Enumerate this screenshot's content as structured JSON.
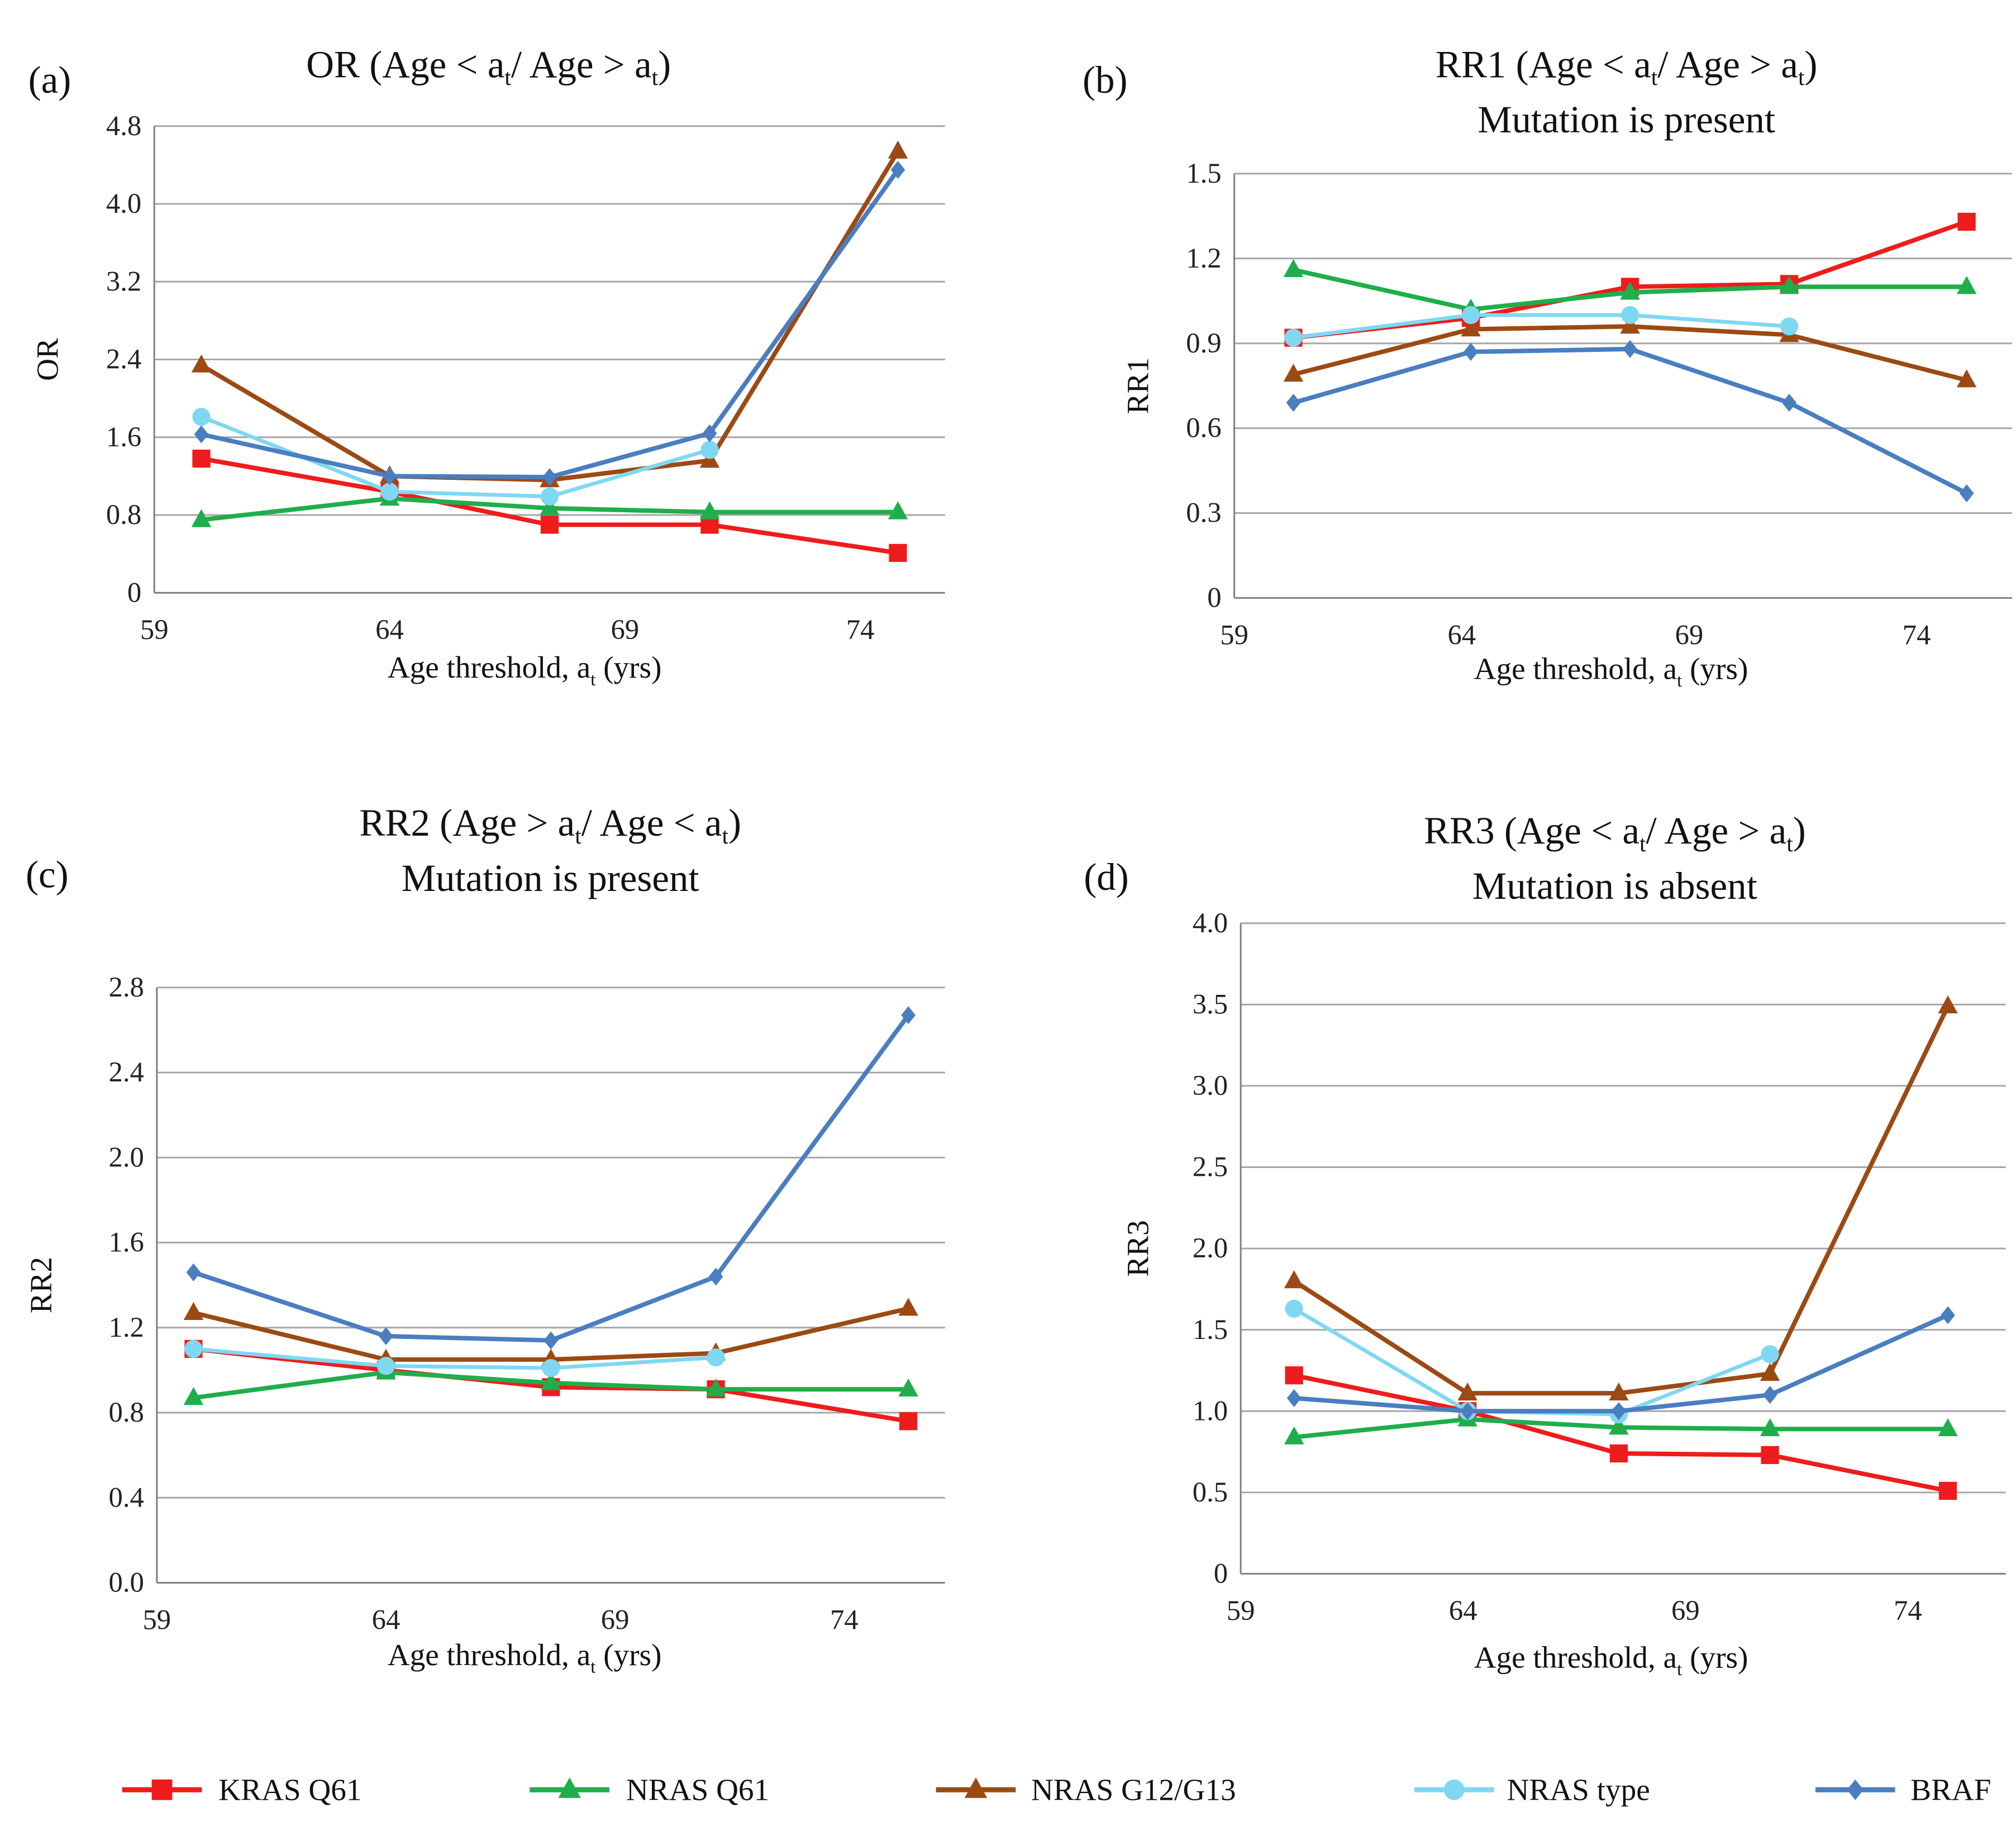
{
  "colors": {
    "KRAS Q61": "#ee1c1c",
    "NRAS Q61": "#1fae4b",
    "NRAS G12/G13": "#9c4a14",
    "NRAS type": "#7fd8f2",
    "BRAF": "#4a7ebf",
    "grid": "#a6a6a6",
    "axis": "#7f7f7f"
  },
  "legend": [
    {
      "name": "KRAS Q61",
      "marker": "square"
    },
    {
      "name": "NRAS Q61",
      "marker": "triangle"
    },
    {
      "name": "NRAS G12/G13",
      "marker": "triangle"
    },
    {
      "name": "NRAS type",
      "marker": "circle"
    },
    {
      "name": "BRAF",
      "marker": "diamond"
    }
  ],
  "chart_data": [
    {
      "type": "line",
      "panel_label": "(a)",
      "title": [
        [
          "OR (Age < a",
          "t",
          "/ Age > a",
          "t",
          ")"
        ]
      ],
      "xlabel": [
        "Age threshold, a",
        "t",
        " (yrs)"
      ],
      "ylabel": "OR",
      "xticks": [
        59,
        64,
        69,
        74
      ],
      "yticks": [
        "0",
        "0.8",
        "1.6",
        "2.4",
        "3.2",
        "4.0",
        "4.8"
      ],
      "ylim": [
        0,
        4.8
      ],
      "xlim": [
        59,
        75.8
      ],
      "x": [
        60,
        64,
        67.4,
        70.8,
        74.8
      ],
      "series": [
        {
          "name": "KRAS Q61",
          "values": [
            1.38,
            1.04,
            0.7,
            0.7,
            0.41
          ]
        },
        {
          "name": "NRAS Q61",
          "values": [
            0.75,
            0.97,
            0.87,
            0.83,
            0.83
          ]
        },
        {
          "name": "NRAS G12/G13",
          "values": [
            2.34,
            1.2,
            1.16,
            1.36,
            4.54
          ]
        },
        {
          "name": "NRAS type",
          "values": [
            1.81,
            1.04,
            0.99,
            1.47,
            null
          ]
        },
        {
          "name": "BRAF",
          "values": [
            1.63,
            1.2,
            1.19,
            1.64,
            4.35
          ]
        }
      ]
    },
    {
      "type": "line",
      "panel_label": "(b)",
      "title": [
        [
          "RR1 (Age < a",
          "t",
          "/ Age > a",
          "t",
          ")"
        ],
        [
          "Mutation is present"
        ]
      ],
      "xlabel": [
        "Age threshold, a",
        "t",
        " (yrs)"
      ],
      "ylabel": "RR1",
      "xticks": [
        59,
        64,
        69,
        74
      ],
      "yticks": [
        "0",
        "0.3",
        "0.6",
        "0.9",
        "1.2",
        "1.5"
      ],
      "ylim": [
        0,
        1.5
      ],
      "xlim": [
        59,
        76.1
      ],
      "x": [
        60.3,
        64.2,
        67.7,
        71.2,
        75.1
      ],
      "series": [
        {
          "name": "KRAS Q61",
          "values": [
            0.92,
            0.99,
            1.1,
            1.11,
            1.33
          ]
        },
        {
          "name": "NRAS Q61",
          "values": [
            1.16,
            1.02,
            1.08,
            1.1,
            1.1
          ]
        },
        {
          "name": "NRAS G12/G13",
          "values": [
            0.79,
            0.95,
            0.96,
            0.93,
            0.77
          ]
        },
        {
          "name": "NRAS type",
          "values": [
            0.92,
            1.0,
            1.0,
            0.96,
            null
          ]
        },
        {
          "name": "BRAF",
          "values": [
            0.69,
            0.87,
            0.88,
            0.69,
            0.37
          ]
        }
      ]
    },
    {
      "type": "line",
      "panel_label": "(c)",
      "title": [
        [
          "RR2 (Age > a",
          "t",
          "/ Age < a",
          "t",
          ")"
        ],
        [
          "Mutation is present"
        ]
      ],
      "xlabel": [
        "Age threshold, a",
        "t",
        " (yrs)"
      ],
      "ylabel": "RR2",
      "xticks": [
        59,
        64,
        69,
        74
      ],
      "yticks": [
        "0.0",
        "0.4",
        "0.8",
        "1.2",
        "1.6",
        "2.0",
        "2.4",
        "2.8"
      ],
      "ylim": [
        0,
        2.8
      ],
      "xlim": [
        59,
        76.2
      ],
      "x": [
        59.8,
        64,
        67.6,
        71.2,
        75.4
      ],
      "series": [
        {
          "name": "KRAS Q61",
          "values": [
            1.1,
            1.0,
            0.92,
            0.91,
            0.76
          ]
        },
        {
          "name": "NRAS Q61",
          "values": [
            0.87,
            0.99,
            0.94,
            0.91,
            0.91
          ]
        },
        {
          "name": "NRAS G12/G13",
          "values": [
            1.27,
            1.05,
            1.05,
            1.08,
            1.29
          ]
        },
        {
          "name": "NRAS type",
          "values": [
            1.1,
            1.02,
            1.01,
            1.06,
            null
          ]
        },
        {
          "name": "BRAF",
          "values": [
            1.46,
            1.16,
            1.14,
            1.44,
            2.67
          ]
        }
      ]
    },
    {
      "type": "line",
      "panel_label": "(d)",
      "title": [
        [
          "RR3 (Age < a",
          "t",
          "/ Age > a",
          "t",
          ")"
        ],
        [
          "Mutation is absent"
        ]
      ],
      "xlabel": [
        "Age threshold, a",
        "t",
        " (yrs)"
      ],
      "ylabel": "RR3",
      "xticks": [
        59,
        64,
        69,
        74
      ],
      "yticks": [
        "0",
        "0.5",
        "1.0",
        "1.5",
        "2.0",
        "2.5",
        "3.0",
        "3.5",
        "4.0"
      ],
      "ylim": [
        0,
        4.0
      ],
      "xlim": [
        59,
        76.2
      ],
      "x": [
        60.2,
        64.1,
        67.5,
        70.9,
        74.9
      ],
      "series": [
        {
          "name": "KRAS Q61",
          "values": [
            1.22,
            1.0,
            0.74,
            0.73,
            0.51
          ]
        },
        {
          "name": "NRAS Q61",
          "values": [
            0.84,
            0.95,
            0.9,
            0.89,
            0.89
          ]
        },
        {
          "name": "NRAS G12/G13",
          "values": [
            1.8,
            1.11,
            1.11,
            1.23,
            3.49
          ]
        },
        {
          "name": "NRAS type",
          "values": [
            1.63,
            1.0,
            0.98,
            1.35,
            null
          ]
        },
        {
          "name": "BRAF",
          "values": [
            1.08,
            1.0,
            1.0,
            1.1,
            1.59
          ]
        }
      ]
    }
  ]
}
